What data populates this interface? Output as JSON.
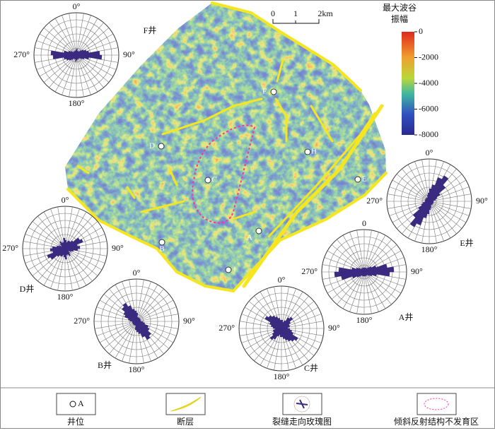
{
  "scale_bar": {
    "labels": [
      "0",
      "1",
      "2km"
    ]
  },
  "colorbar": {
    "title_lines": [
      "最大波谷",
      "振幅"
    ],
    "range": [
      -8000,
      0
    ],
    "ticks": [
      0,
      -2000,
      -4000,
      -6000,
      -8000
    ]
  },
  "wells": [
    "F",
    "D",
    "C",
    "H",
    "E",
    "B",
    "A",
    "I"
  ],
  "roses": [
    {
      "name": "F井",
      "labels": [
        "0°",
        "90°",
        "180°",
        "270°"
      ],
      "petals": [
        0.15,
        0.1,
        0.1,
        0.1,
        0.15,
        0.2,
        0.25,
        0.3,
        0.55,
        0.6,
        0.3,
        0.2,
        0.15,
        0.1,
        0.1,
        0.1,
        0.1,
        0.12
      ]
    },
    {
      "name": "D井",
      "labels": [
        "0°",
        "90°",
        "180°",
        "270°"
      ],
      "petals": [
        0.2,
        0.15,
        0.2,
        0.2,
        0.25,
        0.4,
        0.45,
        0.3,
        0.35,
        0.3,
        0.2,
        0.15,
        0.1,
        0.15,
        0.2,
        0.15,
        0.15,
        0.25
      ]
    },
    {
      "name": "B井",
      "labels": [
        "0°",
        "90°",
        "180°",
        "270°"
      ],
      "petals": [
        0.2,
        0.1,
        0.1,
        0.1,
        0.1,
        0.1,
        0.1,
        0.1,
        0.1,
        0.15,
        0.2,
        0.3,
        0.35,
        0.45,
        0.5,
        0.4,
        0.3,
        0.25
      ]
    },
    {
      "name": "C井",
      "labels": [
        "0°",
        "90°",
        "180°",
        "270°"
      ],
      "petals": [
        0.2,
        0.15,
        0.2,
        0.3,
        0.35,
        0.25,
        0.2,
        0.2,
        0.15,
        0.2,
        0.25,
        0.3,
        0.45,
        0.4,
        0.35,
        0.3,
        0.25,
        0.2
      ]
    },
    {
      "name": "A井",
      "labels": [
        "0",
        "90°",
        "180°",
        "270°"
      ],
      "petals": [
        0.1,
        0.1,
        0.1,
        0.1,
        0.15,
        0.2,
        0.3,
        0.55,
        0.7,
        0.6,
        0.3,
        0.2,
        0.15,
        0.1,
        0.1,
        0.1,
        0.1,
        0.1
      ]
    },
    {
      "name": "E井",
      "labels": [
        "0°",
        "90°",
        "180°",
        "270°"
      ],
      "petals": [
        0.3,
        0.4,
        0.6,
        0.7,
        0.5,
        0.3,
        0.2,
        0.15,
        0.1,
        0.1,
        0.1,
        0.1,
        0.1,
        0.1,
        0.1,
        0.1,
        0.15,
        0.2
      ]
    }
  ],
  "legend": {
    "well_symbol": "A",
    "items": [
      "井位",
      "断层",
      "裂缝走向玫瑰图",
      "倾斜反射结构不发育区"
    ]
  }
}
